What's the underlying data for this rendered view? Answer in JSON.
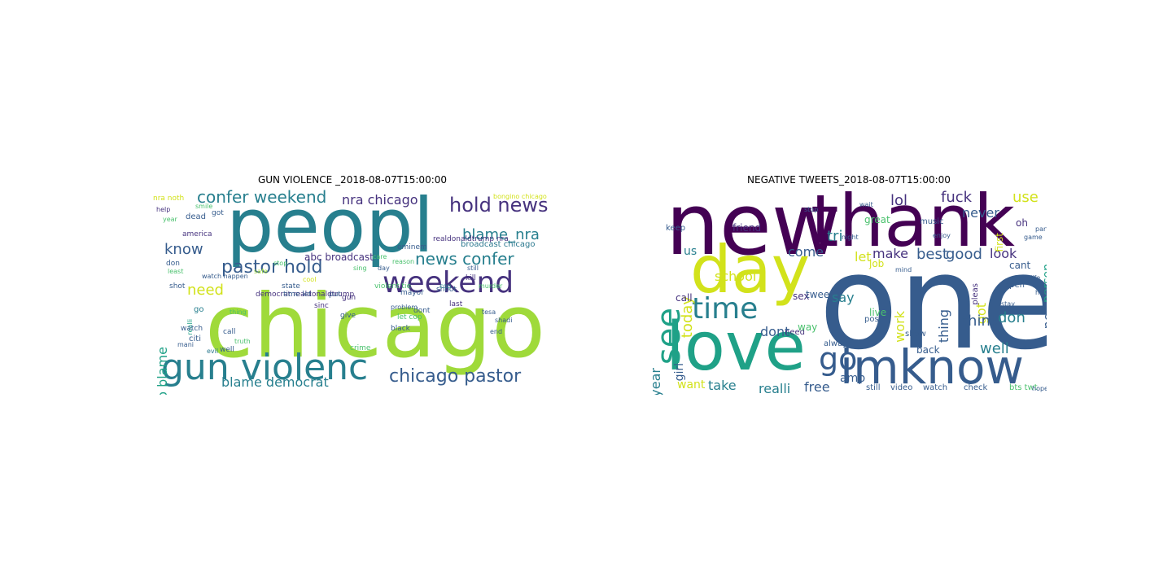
{
  "clouds": [
    {
      "title": "GUN VIOLENCE _2018-08-07T15:00:00",
      "words": [
        "chicago",
        "peopl",
        "gun violenc",
        "weekend",
        "chicago pastor",
        "hold news",
        "confer weekend",
        "news confer",
        "pastor hold",
        "blame_nra",
        "know",
        "blame democrat",
        "need",
        "nra chicago",
        "chicago blame",
        "abc broadcast",
        "democrat realdonaldtrump",
        "realdonaldtrump nra",
        "broadcast chicago",
        "eminem",
        "bongino chicago",
        "nra noth",
        "help",
        "don",
        "dead",
        "america",
        "got",
        "watch happen",
        "least",
        "shot",
        "realli",
        "go",
        "citi",
        "watch",
        "evil",
        "mani",
        "call",
        "gun",
        "give",
        "crime",
        "state",
        "time let",
        "violent tie",
        "sinc",
        "mayor",
        "shoot",
        "still",
        "kill",
        "murder",
        "last",
        "dont",
        "black",
        "let cop",
        "problem",
        "cop",
        "tesa",
        "shadi",
        "end",
        "year",
        "smile",
        "well",
        "thing",
        "truth",
        "put",
        "sing",
        "day",
        "care",
        "reason",
        "cool",
        "stop",
        "safe"
      ]
    },
    {
      "title": "NEGATIVE TWEETS_2018-08-07T15:00:00",
      "words": [
        "one",
        "new",
        "thank",
        "day",
        "love",
        "imknow",
        "see",
        "time",
        "go",
        "today",
        "lol",
        "fuck",
        "use",
        "never",
        "tri",
        "let",
        "come",
        "make",
        "best",
        "good",
        "look",
        "school",
        "dont",
        "say",
        "work",
        "thing",
        "got",
        "peopl",
        "don",
        "think",
        "well",
        "year",
        "girl",
        "want",
        "take",
        "realli",
        "free",
        "amp",
        "us",
        "friend",
        "call",
        "job",
        "great",
        "oh",
        "first",
        "pleas",
        "cant",
        "person",
        "open",
        "sex",
        "need",
        "way",
        "tweet",
        "post",
        "live",
        "show",
        "alway",
        "back",
        "still",
        "video",
        "watch",
        "check",
        "bts twt",
        "keep",
        "music",
        "game",
        "life",
        "hope",
        "wait",
        "help",
        "stay",
        "stop",
        "night",
        "enjoy",
        "part",
        "mind"
      ]
    }
  ]
}
